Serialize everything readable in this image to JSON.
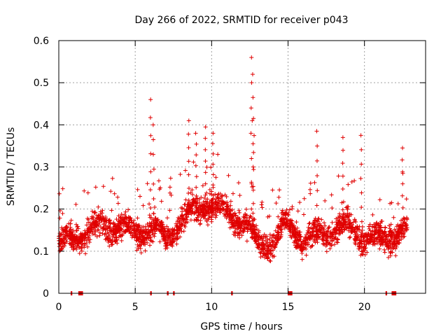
{
  "chart_data": {
    "type": "scatter",
    "title": "Day 266 of 2022, SRMTID for receiver p043",
    "xlabel": "GPS time / hours",
    "ylabel": "SRMTID / TECUs",
    "xlim": [
      0,
      24
    ],
    "ylim": [
      0,
      0.6
    ],
    "xticks": [
      0,
      5,
      10,
      15,
      20
    ],
    "xtick_labels": [
      "0",
      "5",
      "10",
      "15",
      "20"
    ],
    "yticks": [
      0,
      0.1,
      0.2,
      0.3,
      0.4,
      0.5,
      0.6
    ],
    "ytick_labels": [
      "0",
      "0.1",
      "0.2",
      "0.3",
      "0.4",
      "0.5",
      "0.6"
    ],
    "grid": true,
    "marker": "+",
    "color": "#e00000",
    "data_extent": [
      0,
      22.8
    ],
    "baseline_clusters_hours": [
      0.8,
      1.3,
      1.4,
      1.5,
      6.0,
      7.1,
      7.5,
      11.3,
      15.0,
      15.1,
      15.2,
      21.4,
      21.8,
      21.9,
      22.0
    ],
    "trend_hours": [
      0,
      1,
      2,
      3,
      4,
      5,
      6,
      7,
      8,
      9,
      10,
      11,
      12,
      13,
      14,
      15,
      16,
      17,
      18,
      19,
      20,
      21,
      22,
      22.8
    ],
    "trend_values": [
      0.12,
      0.13,
      0.15,
      0.16,
      0.16,
      0.14,
      0.16,
      0.13,
      0.17,
      0.2,
      0.21,
      0.19,
      0.17,
      0.12,
      0.12,
      0.17,
      0.12,
      0.14,
      0.15,
      0.16,
      0.13,
      0.13,
      0.14,
      0.15
    ],
    "peaks": [
      {
        "x": 6.0,
        "y": 0.46
      },
      {
        "x": 6.2,
        "y": 0.4
      },
      {
        "x": 8.5,
        "y": 0.41
      },
      {
        "x": 9.0,
        "y": 0.38
      },
      {
        "x": 9.6,
        "y": 0.395
      },
      {
        "x": 10.1,
        "y": 0.38
      },
      {
        "x": 12.6,
        "y": 0.56
      },
      {
        "x": 12.7,
        "y": 0.52
      },
      {
        "x": 12.75,
        "y": 0.415
      },
      {
        "x": 16.9,
        "y": 0.385
      },
      {
        "x": 18.6,
        "y": 0.37
      },
      {
        "x": 19.8,
        "y": 0.375
      },
      {
        "x": 22.5,
        "y": 0.345
      }
    ]
  }
}
